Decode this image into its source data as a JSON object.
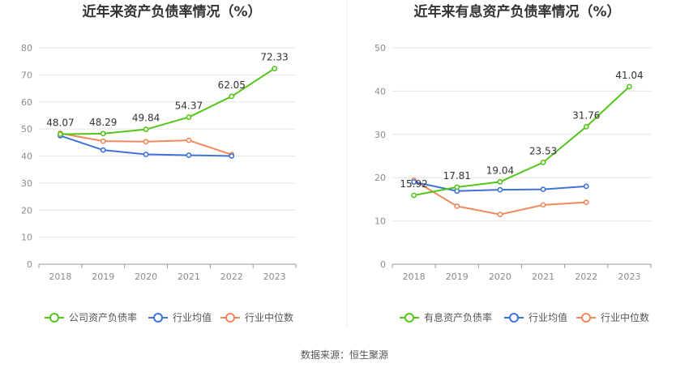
{
  "source_label": "数据来源：恒生聚源",
  "colors": {
    "company": "#52c41a",
    "avg": "#3f73d9",
    "median": "#f0895c",
    "grid": "#e6e6e6",
    "axis": "#999999"
  },
  "chart_data": [
    {
      "type": "line",
      "title": "近年来资产负债率情况（%）",
      "categories": [
        "2018",
        "2019",
        "2020",
        "2021",
        "2022",
        "2023"
      ],
      "ylim": [
        0,
        80
      ],
      "yticks": [
        0,
        10,
        20,
        30,
        40,
        50,
        60,
        70,
        80
      ],
      "grid": true,
      "legend_position": "bottom",
      "series": [
        {
          "name": "公司资产负债率",
          "values": [
            48.07,
            48.29,
            49.84,
            54.37,
            62.05,
            72.33
          ],
          "labels": [
            "48.07",
            "48.29",
            "49.84",
            "54.37",
            "62.05",
            "72.33"
          ]
        },
        {
          "name": "行业均值",
          "values": [
            47.5,
            42.2,
            40.6,
            40.3,
            40.0,
            null
          ]
        },
        {
          "name": "行业中位数",
          "values": [
            48.4,
            45.5,
            45.3,
            45.8,
            40.5,
            null
          ]
        }
      ]
    },
    {
      "type": "line",
      "title": "近年来有息资产负债率情况（%）",
      "categories": [
        "2018",
        "2019",
        "2020",
        "2021",
        "2022",
        "2023"
      ],
      "ylim": [
        0,
        50
      ],
      "yticks": [
        0,
        10,
        20,
        30,
        40,
        50
      ],
      "grid": true,
      "legend_position": "bottom",
      "series": [
        {
          "name": "有息资产负债率",
          "values": [
            15.92,
            17.81,
            19.04,
            23.53,
            31.76,
            41.04
          ],
          "labels": [
            "15.92",
            "17.81",
            "19.04",
            "23.53",
            "31.76",
            "41.04"
          ]
        },
        {
          "name": "行业均值",
          "values": [
            19.0,
            16.9,
            17.2,
            17.3,
            18.0,
            null
          ]
        },
        {
          "name": "行业中位数",
          "values": [
            19.4,
            13.4,
            11.5,
            13.7,
            14.3,
            null
          ]
        }
      ]
    }
  ]
}
